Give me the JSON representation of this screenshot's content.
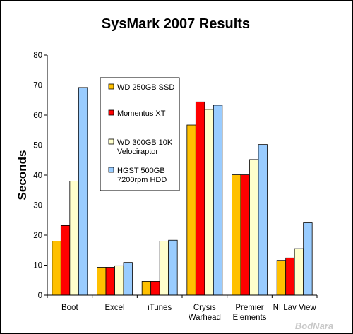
{
  "chart_data": {
    "type": "bar",
    "title": "SysMark 2007 Results",
    "ylabel": "Seconds",
    "xlabel": "",
    "ylim": [
      0,
      80
    ],
    "yticks": [
      0,
      10,
      20,
      30,
      40,
      50,
      60,
      70,
      80
    ],
    "grid": false,
    "legend_position": "top-left inside plot",
    "categories": [
      [
        "Boot"
      ],
      [
        "Excel"
      ],
      [
        "iTunes"
      ],
      [
        "Crysis",
        "Warhead"
      ],
      [
        "Premier",
        "Elements"
      ],
      [
        "NI Lav View"
      ]
    ],
    "series": [
      {
        "name": [
          "WD 250GB SSD"
        ],
        "color": "#FFC000",
        "values": [
          18,
          9.3,
          4.6,
          56.7,
          40.1,
          11.6
        ]
      },
      {
        "name": [
          "Momentus XT"
        ],
        "color": "#FF0000",
        "values": [
          23.2,
          9.3,
          4.6,
          64.4,
          40.1,
          12.4
        ]
      },
      {
        "name": [
          "WD 300GB 10K",
          "Velociraptor"
        ],
        "color": "#FFFFCC",
        "values": [
          38,
          9.8,
          18,
          61.9,
          45.2,
          15.5
        ]
      },
      {
        "name": [
          "HGST 500GB",
          "7200rpm HDD"
        ],
        "color": "#99CCFF",
        "values": [
          69.2,
          10.9,
          18.3,
          63.3,
          50.2,
          24.1
        ]
      }
    ]
  },
  "watermark": "BodNara"
}
